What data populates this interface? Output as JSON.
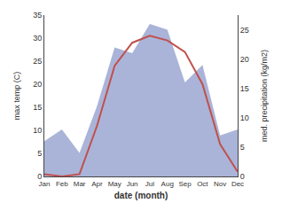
{
  "chart_data": {
    "type": "line",
    "xlabel": "date (month)",
    "ylabel": "max temp (C)",
    "y2label": "med. precipitation (kg/m2)",
    "categories": [
      "Jan",
      "Feb",
      "Mar",
      "Apr",
      "May",
      "Jun",
      "Jul",
      "Aug",
      "Sep",
      "Oct",
      "Nov",
      "Dec"
    ],
    "series": [
      {
        "type": "line",
        "color": "#c0504d",
        "values": [
          0.5,
          0.0,
          0.5,
          11.0,
          24.0,
          29.0,
          30.5,
          29.5,
          27.0,
          20.0,
          7.0,
          1.0
        ]
      },
      {
        "type": "area",
        "color": "#aab4d8",
        "axis": "y2",
        "values": [
          6.0,
          8.0,
          4.0,
          12.0,
          22.0,
          21.0,
          26.0,
          25.0,
          16.0,
          19.0,
          7.0,
          8.0
        ]
      }
    ],
    "ylim": [
      0,
      35
    ],
    "yticks": [
      0,
      5,
      10,
      15,
      20,
      25,
      30,
      35
    ],
    "y2lim": [
      0,
      27.5
    ],
    "y2ticks": [
      0,
      5,
      10,
      15,
      20,
      25
    ],
    "grid": false
  }
}
